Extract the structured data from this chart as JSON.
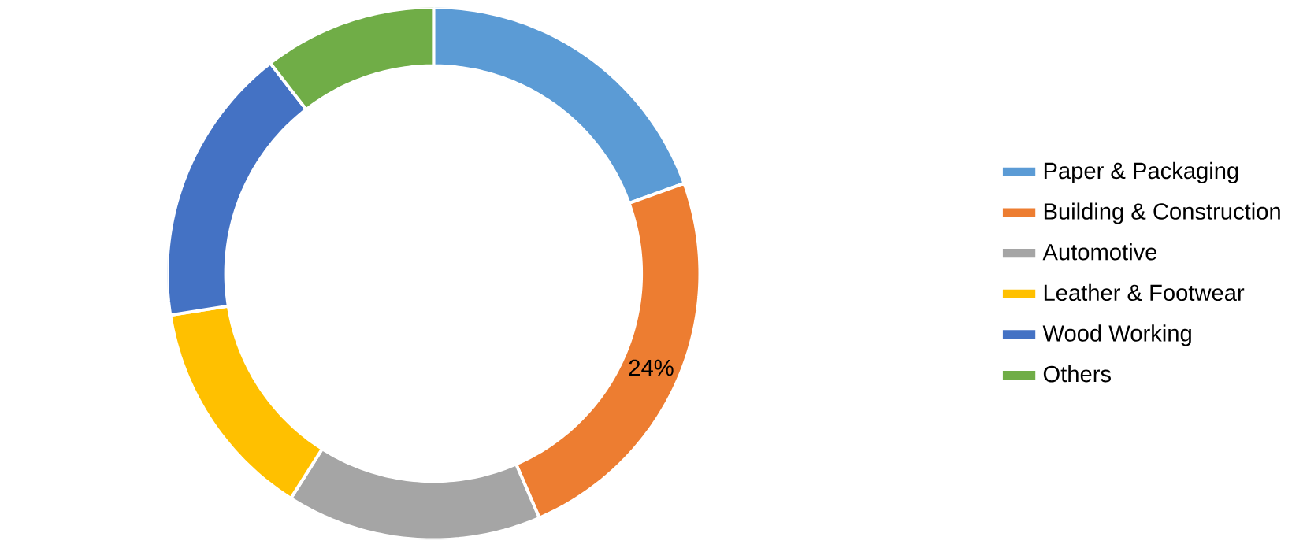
{
  "chart_data": {
    "type": "donut",
    "categories": [
      "Paper & Packaging",
      "Building & Construction",
      "Automotive",
      "Leather & Footwear",
      "Wood Working",
      "Others"
    ],
    "values": [
      19.5,
      24,
      15.5,
      13.5,
      17,
      10.5
    ],
    "colors": [
      "#5b9bd5",
      "#ed7d31",
      "#a5a5a5",
      "#ffc000",
      "#4472c4",
      "#70ad47"
    ],
    "value_labels": [
      null,
      "24%",
      null,
      null,
      null,
      null
    ],
    "legend": "right"
  }
}
